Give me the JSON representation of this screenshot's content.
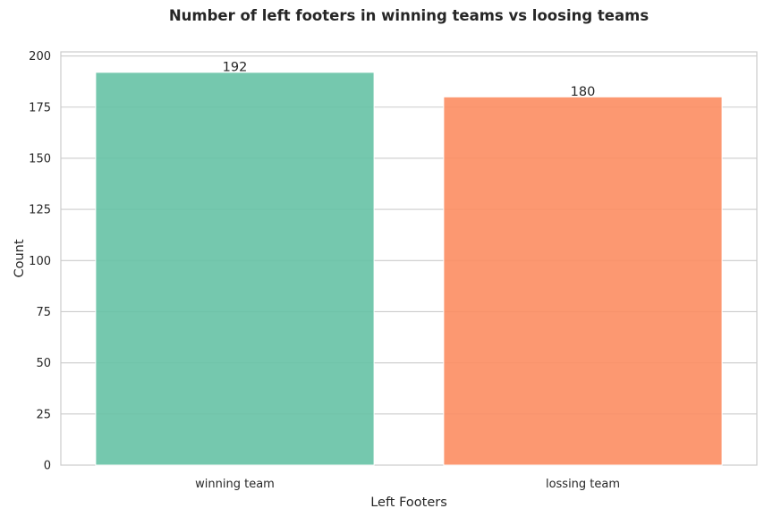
{
  "chart_data": {
    "type": "bar",
    "title": "Number of left footers in winning teams vs loosing teams",
    "xlabel": "Left Footers",
    "ylabel": "Count",
    "categories": [
      "winning team",
      "lossing team"
    ],
    "values": [
      192,
      180
    ],
    "data_labels": [
      "192",
      "180"
    ],
    "colors": [
      "#66c2a5",
      "#fc8d62"
    ],
    "ylim": [
      0,
      202
    ],
    "yticks": [
      0,
      25,
      50,
      75,
      100,
      125,
      150,
      175,
      200
    ],
    "grid": "horizontal",
    "legend": "none"
  }
}
